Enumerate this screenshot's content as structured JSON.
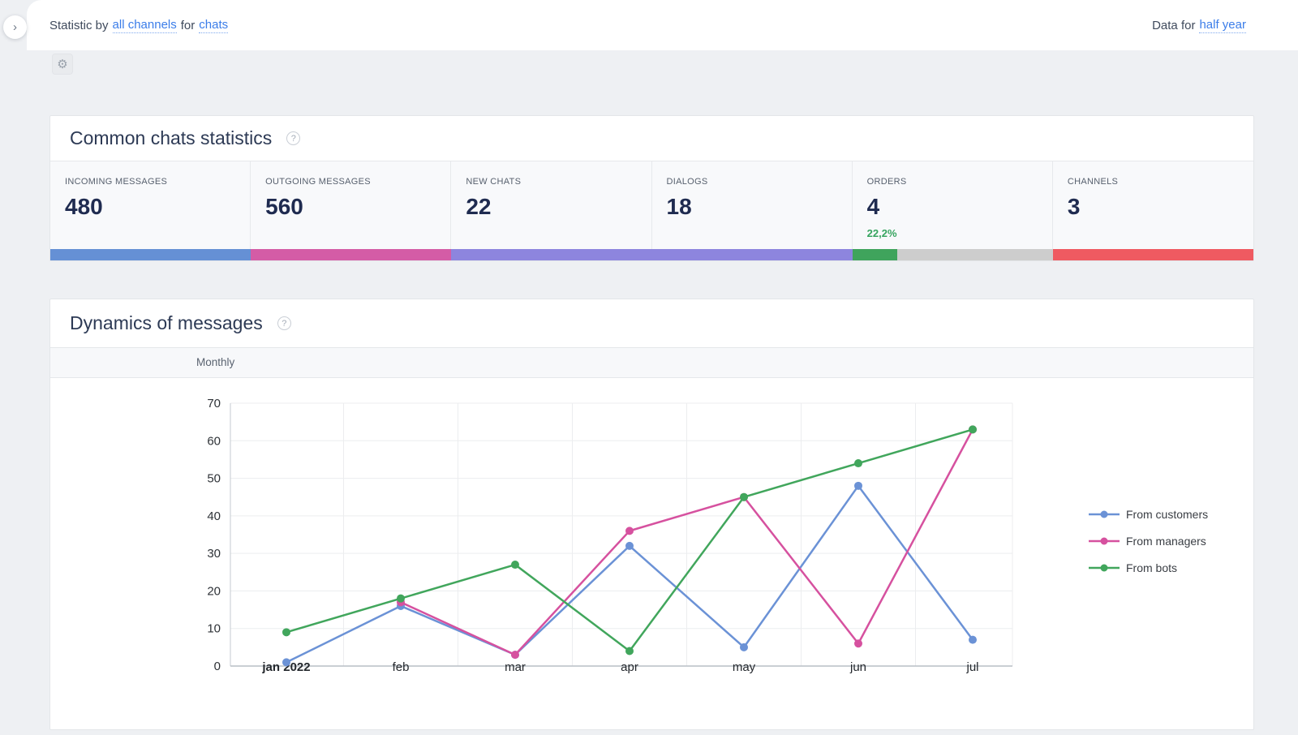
{
  "header": {
    "statistic_prefix": "Statistic by",
    "channels_link": "all channels",
    "for_text": "for",
    "chats_link": "chats",
    "data_for_prefix": "Data for",
    "period_link": "half year",
    "chevron_icon": "›",
    "gear_icon": "⚙",
    "help_icon": "?"
  },
  "common_stats": {
    "title": "Common chats statistics",
    "items": [
      {
        "label": "INCOMING MESSAGES",
        "value": "480",
        "bar": [
          {
            "color": "#6590d5",
            "pct": 100
          }
        ]
      },
      {
        "label": "OUTGOING MESSAGES",
        "value": "560",
        "bar": [
          {
            "color": "#d45ca6",
            "pct": 100
          }
        ]
      },
      {
        "label": "NEW CHATS",
        "value": "22",
        "bar": [
          {
            "color": "#8d85de",
            "pct": 100
          }
        ]
      },
      {
        "label": "DIALOGS",
        "value": "18",
        "bar": [
          {
            "color": "#8d85de",
            "pct": 100
          }
        ]
      },
      {
        "label": "ORDERS",
        "value": "4",
        "percent": "22,2%",
        "bar": [
          {
            "color": "#3fa45c",
            "pct": 22.2
          },
          {
            "color": "#cdcdcd",
            "pct": 77.8
          }
        ]
      },
      {
        "label": "CHANNELS",
        "value": "3",
        "bar": [
          {
            "color": "#ef5a61",
            "pct": 100
          }
        ]
      }
    ]
  },
  "dynamics": {
    "title": "Dynamics of messages",
    "tab": "Monthly"
  },
  "chart_data": {
    "type": "line",
    "x": [
      "jan 2022",
      "feb",
      "mar",
      "apr",
      "may",
      "jun",
      "jul"
    ],
    "series": [
      {
        "name": "From customers",
        "color": "#6b92d6",
        "values": [
          1,
          16,
          3,
          32,
          5,
          48,
          7
        ]
      },
      {
        "name": "From managers",
        "color": "#d6519f",
        "values": [
          null,
          17,
          3,
          36,
          45,
          6,
          63
        ]
      },
      {
        "name": "From bots",
        "color": "#41a65c",
        "values": [
          9,
          18,
          27,
          4,
          45,
          54,
          63
        ]
      }
    ],
    "ylim": [
      0,
      70
    ],
    "ytick_step": 10,
    "grid": true,
    "legend_position": "right",
    "axis_color": "#b9bfc5",
    "gridline_color": "#ecedef",
    "tick_label_color": "#2e3237",
    "legend_text_color": "#3a3e44"
  }
}
